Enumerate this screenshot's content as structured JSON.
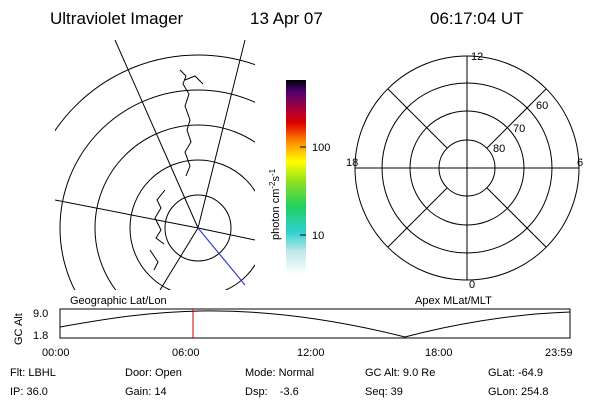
{
  "header": {
    "title": "Ultraviolet Imager",
    "date": "13 Apr 07",
    "time": "06:17:04 UT"
  },
  "colorbar": {
    "label": "photon cm",
    "label_sup1": "-2",
    "label_mid": "s",
    "label_sup2": "-1",
    "ticks": [
      "100",
      "10"
    ]
  },
  "polar_plot": {
    "mlt_labels": [
      "12",
      "18",
      "6",
      "0"
    ],
    "lat_labels": [
      "60",
      "70",
      "80"
    ]
  },
  "orbit_plot": {
    "left_label": "Geographic Lat/Lon",
    "right_label": "Apex MLat/MLT",
    "y_label": "GC Alt",
    "y_ticks": [
      "9.0",
      "1.8"
    ],
    "x_ticks": [
      "00:00",
      "06:00",
      "12:00",
      "18:00",
      "23:59"
    ]
  },
  "info": {
    "rows": [
      [
        "Flt: LBHL",
        "Door: Open",
        "Mode: Normal",
        "GC Alt: 9.0 Re",
        "GLat: -64.9"
      ],
      [
        "IP: 36.0",
        "Gain: 14",
        "Dsp:    -3.6",
        "Seq: 39",
        "GLon: 254.8"
      ]
    ]
  }
}
